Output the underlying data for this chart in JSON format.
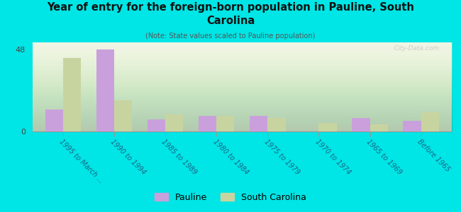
{
  "title": "Year of entry for the foreign-born population in Pauline, South\nCarolina",
  "subtitle": "(Note: State values scaled to Pauline population)",
  "categories": [
    "1995 to March ...",
    "1990 to 1994",
    "1985 to 1989",
    "1980 to 1984",
    "1975 to 1979",
    "1970 to 1974",
    "1965 to 1969",
    "Before 1965"
  ],
  "pauline_values": [
    13,
    48,
    7,
    9,
    9,
    0,
    8,
    6
  ],
  "sc_values": [
    43,
    18,
    10,
    9,
    8,
    5,
    4,
    11
  ],
  "pauline_color": "#c9a0dc",
  "sc_color": "#c8d4a0",
  "background_color": "#00e5e5",
  "ylim": [
    0,
    52
  ],
  "yticks": [
    0,
    48
  ],
  "bar_width": 0.35,
  "watermark": "City-Data.com",
  "legend_labels": [
    "Pauline",
    "South Carolina"
  ]
}
